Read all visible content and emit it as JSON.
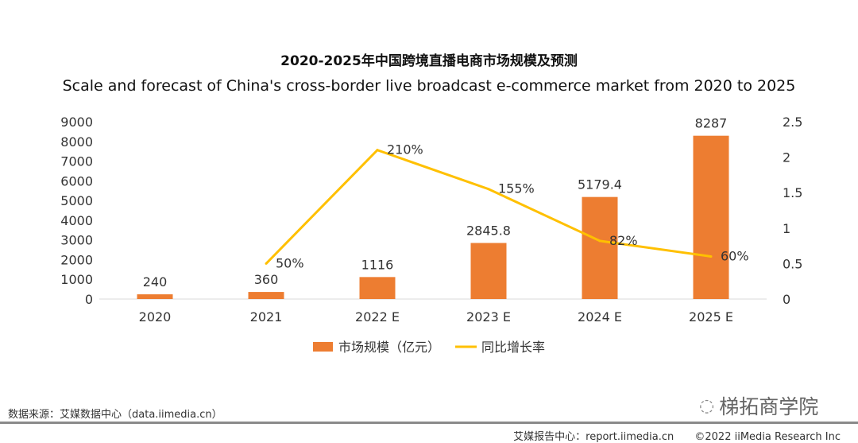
{
  "chart_data": {
    "type": "bar+line",
    "title": "2020-2025年中国跨境直播电商市场规模及预测",
    "subtitle": "Scale and forecast of China's cross-border live broadcast e-commerce market from 2020 to 2025",
    "categories": [
      "2020",
      "2021",
      "2022 E",
      "2023 E",
      "2024 E",
      "2025 E"
    ],
    "series": [
      {
        "name": "市场规模（亿元）",
        "type": "bar",
        "axis": "left",
        "color": "#ED7D31",
        "values": [
          240,
          360,
          1116,
          2845.8,
          5179.4,
          8287
        ],
        "labels": [
          "240",
          "360",
          "1116",
          "2845.8",
          "5179.4",
          "8287"
        ]
      },
      {
        "name": "同比增长率",
        "type": "line",
        "axis": "right",
        "color": "#FFC000",
        "values": [
          null,
          0.5,
          2.1,
          1.55,
          0.82,
          0.6
        ],
        "labels": [
          "",
          "50%",
          "210%",
          "155%",
          "82%",
          "60%"
        ]
      }
    ],
    "y_left": {
      "range": [
        0,
        9000
      ],
      "ticks": [
        "0",
        "1000",
        "2000",
        "3000",
        "4000",
        "5000",
        "6000",
        "7000",
        "8000",
        "9000"
      ]
    },
    "y_right": {
      "range": [
        0,
        2.5
      ],
      "ticks": [
        "0",
        "0.5",
        "1",
        "1.5",
        "2",
        "2.5"
      ]
    },
    "grid": false,
    "legend": "bottom"
  },
  "footer": {
    "source": "数据来源：艾媒数据中心（data.iimedia.cn）",
    "report": "艾媒报告中心：report.iimedia.cn",
    "copyright": "©2022  iiMedia Research  Inc",
    "watermark": "梯拓商学院"
  }
}
